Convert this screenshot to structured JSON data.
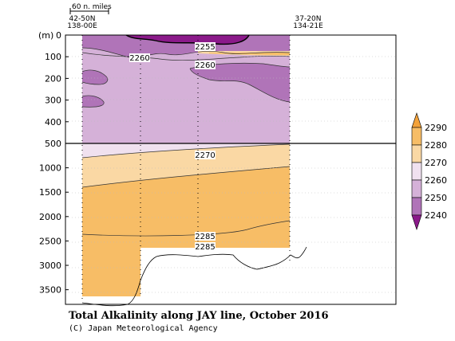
{
  "chart_data": {
    "type": "contour-section",
    "title": "Total Alkalinity along JAY line, October 2016",
    "credit": "(C) Japan Meteorological Agency",
    "scale_label": "60 n. miles",
    "left_station": {
      "lat": "42-50N",
      "lon": "138-00E"
    },
    "right_station": {
      "lat": "37-20N",
      "lon": "134-21E"
    },
    "y_unit": "(m)",
    "y_upper": {
      "range": [
        0,
        500
      ],
      "ticks": [
        0,
        100,
        200,
        300,
        400,
        500
      ]
    },
    "y_lower": {
      "range": [
        500,
        3800
      ],
      "ticks": [
        1000,
        1500,
        2000,
        2500,
        3000,
        3500
      ]
    },
    "colorbar": {
      "levels": [
        2240,
        2250,
        2260,
        2270,
        2280,
        2290
      ],
      "colors": [
        "#8b1a8a",
        "#b074b8",
        "#d5b1d8",
        "#f0e1ef",
        "#fad8a4",
        "#f7bd66",
        "#f3a23a"
      ],
      "extend": "both"
    },
    "contour_labels": [
      {
        "value": "2255",
        "depth": 60
      },
      {
        "value": "2260",
        "depth": 110
      },
      {
        "value": "2260",
        "depth": 145
      },
      {
        "value": "2270",
        "depth": 795
      },
      {
        "value": "2285",
        "depth": 2445
      },
      {
        "value": "2285",
        "depth": 2590
      }
    ],
    "grid": true
  }
}
